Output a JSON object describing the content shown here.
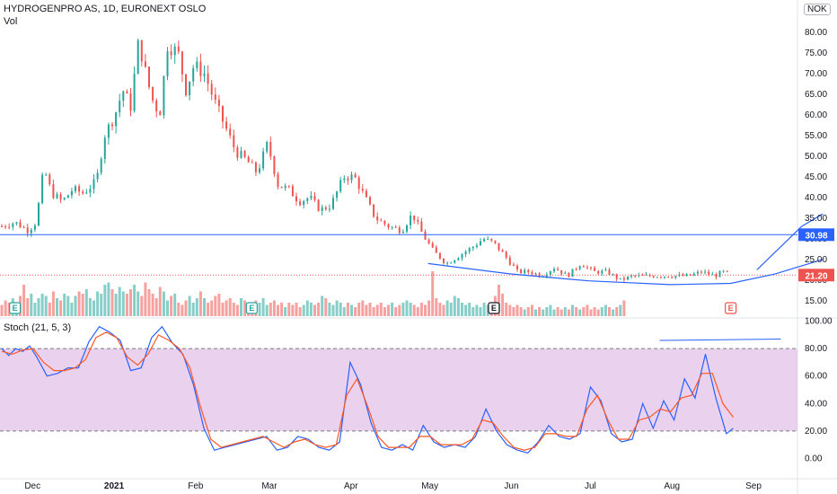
{
  "header": {
    "symbol_line": "HYDROGENPRO AS, 1D, EURONEXT OSLO",
    "vol_label": "Vol",
    "currency": "NOK",
    "stoch_label": "Stoch (21, 5, 3)"
  },
  "colors": {
    "up": "#26a69a",
    "down": "#ef5350",
    "hline": "#2962ff",
    "last_price": "#ef5350",
    "stoch_k": "#2962ff",
    "stoch_d": "#ff5722",
    "stoch_band": "#e1bee7"
  },
  "price_axis": {
    "ticks": [
      "80.00",
      "75.00",
      "70.00",
      "65.00",
      "60.00",
      "55.00",
      "50.00",
      "45.00",
      "40.00",
      "35.00",
      "30.00",
      "25.00",
      "20.00",
      "15.00"
    ],
    "tick_values": [
      80,
      75,
      70,
      65,
      60,
      55,
      50,
      45,
      40,
      35,
      30,
      25,
      20,
      15
    ],
    "range": [
      13,
      83
    ]
  },
  "stoch_axis": {
    "ticks": [
      "100.00",
      "80.00",
      "60.00",
      "40.00",
      "20.00",
      "0.00"
    ],
    "tick_values": [
      100,
      80,
      60,
      40,
      20,
      0
    ],
    "range": [
      -5,
      105
    ],
    "band": [
      20,
      80
    ]
  },
  "time_axis": {
    "labels": [
      "Dec",
      "2021",
      "Feb",
      "Mar",
      "Apr",
      "May",
      "Jun",
      "Jul",
      "Aug",
      "Sep"
    ],
    "label_dates": [
      "2020-12-01",
      "2021-01-01",
      "2021-02-01",
      "2021-03-01",
      "2021-04-01",
      "2021-05-01",
      "2021-06-01",
      "2021-07-01",
      "2021-08-01",
      "2021-09-01"
    ]
  },
  "price_tags": {
    "horizontal_level": "30.98",
    "horizontal_level_value": 30.98,
    "last_price": "21.20",
    "last_price_value": 21.2
  },
  "earnings_markers": [
    {
      "label": "E",
      "date": "2020-11-25",
      "color": "#26a69a"
    },
    {
      "label": "E",
      "date": "2021-02-23",
      "color": "#26a69a"
    },
    {
      "label": "E",
      "date": "2021-05-26",
      "color": "#131722"
    },
    {
      "label": "E",
      "date": "2021-08-24",
      "color": "#ef5350"
    }
  ],
  "chart_data": [
    {
      "type": "candlestick",
      "title": "HYDROGENPRO AS, 1D, EURONEXT OSLO",
      "y_unit": "NOK",
      "ylim": [
        13,
        83
      ],
      "x_start": "2020-11-20",
      "x_end": "2021-08-25",
      "close_path": [
        [
          "2020-11-20",
          33
        ],
        [
          "2020-11-25",
          34
        ],
        [
          "2020-11-30",
          32
        ],
        [
          "2020-12-03",
          34
        ],
        [
          "2020-12-06",
          47
        ],
        [
          "2020-12-09",
          41
        ],
        [
          "2020-12-13",
          39
        ],
        [
          "2020-12-17",
          42
        ],
        [
          "2020-12-21",
          41
        ],
        [
          "2020-12-26",
          44
        ],
        [
          "2020-12-29",
          55
        ],
        [
          "2021-01-02",
          60
        ],
        [
          "2021-01-05",
          66
        ],
        [
          "2021-01-08",
          62
        ],
        [
          "2021-01-11",
          78
        ],
        [
          "2021-01-13",
          72
        ],
        [
          "2021-01-16",
          64
        ],
        [
          "2021-01-19",
          60
        ],
        [
          "2021-01-22",
          77
        ],
        [
          "2021-01-26",
          75
        ],
        [
          "2021-01-29",
          66
        ],
        [
          "2021-02-01",
          72
        ],
        [
          "2021-02-05",
          70
        ],
        [
          "2021-02-09",
          63
        ],
        [
          "2021-02-13",
          57
        ],
        [
          "2021-02-17",
          51
        ],
        [
          "2021-02-21",
          49
        ],
        [
          "2021-02-25",
          46
        ],
        [
          "2021-03-01",
          53
        ],
        [
          "2021-03-05",
          43
        ],
        [
          "2021-03-09",
          42
        ],
        [
          "2021-03-13",
          39
        ],
        [
          "2021-03-17",
          40
        ],
        [
          "2021-03-21",
          37
        ],
        [
          "2021-03-25",
          38
        ],
        [
          "2021-03-30",
          45
        ],
        [
          "2021-04-03",
          45
        ],
        [
          "2021-04-07",
          40
        ],
        [
          "2021-04-11",
          35
        ],
        [
          "2021-04-16",
          33
        ],
        [
          "2021-04-21",
          32
        ],
        [
          "2021-04-25",
          36
        ],
        [
          "2021-04-29",
          31
        ],
        [
          "2021-05-03",
          27
        ],
        [
          "2021-05-08",
          24
        ],
        [
          "2021-05-13",
          26
        ],
        [
          "2021-05-18",
          28
        ],
        [
          "2021-05-22",
          30
        ],
        [
          "2021-05-26",
          29
        ],
        [
          "2021-05-30",
          26
        ],
        [
          "2021-06-04",
          22
        ],
        [
          "2021-06-09",
          22
        ],
        [
          "2021-06-13",
          21
        ],
        [
          "2021-06-18",
          23
        ],
        [
          "2021-06-23",
          21
        ],
        [
          "2021-06-28",
          24
        ],
        [
          "2021-07-03",
          22
        ],
        [
          "2021-07-08",
          22
        ],
        [
          "2021-07-13",
          20
        ],
        [
          "2021-07-18",
          21
        ],
        [
          "2021-07-23",
          21
        ],
        [
          "2021-07-28",
          21
        ],
        [
          "2021-08-03",
          21
        ],
        [
          "2021-08-08",
          21
        ],
        [
          "2021-08-13",
          22
        ],
        [
          "2021-08-18",
          21
        ],
        [
          "2021-08-21",
          22
        ],
        [
          "2021-08-24",
          21.2
        ]
      ],
      "horizontal_line": 30.98,
      "last_price": 21.2,
      "drawn_curve_points": [
        [
          "2021-05-01",
          24
        ],
        [
          "2021-06-01",
          21.5
        ],
        [
          "2021-07-01",
          19.8
        ],
        [
          "2021-08-01",
          18.9
        ],
        [
          "2021-08-24",
          19.2
        ],
        [
          "2021-09-10",
          21.5
        ],
        [
          "2021-09-28",
          25
        ]
      ],
      "drawn_arrow_points": [
        [
          "2021-09-03",
          22.5
        ],
        [
          "2021-09-20",
          33
        ],
        [
          "2021-09-28",
          36
        ]
      ]
    },
    {
      "type": "bar",
      "title": "Vol",
      "x_start": "2020-11-20",
      "x_end": "2021-08-25",
      "relative_volume": [
        0.25,
        0.35,
        0.3,
        0.4,
        0.3,
        0.45,
        0.7,
        0.4,
        0.5,
        0.3,
        0.4,
        0.5,
        0.45,
        0.3,
        0.55,
        0.4,
        0.35,
        0.5,
        0.45,
        0.3,
        0.45,
        0.55,
        0.5,
        0.6,
        0.4,
        0.35,
        0.55,
        0.5,
        0.7,
        0.75,
        0.6,
        0.5,
        0.65,
        0.55,
        0.5,
        0.6,
        0.7,
        0.55,
        0.45,
        0.75,
        0.6,
        0.5,
        0.4,
        0.65,
        0.55,
        0.35,
        0.45,
        0.5,
        0.3,
        0.25,
        0.35,
        0.45,
        0.3,
        0.4,
        0.55,
        0.4,
        0.3,
        0.35,
        0.45,
        0.5,
        0.3,
        0.35,
        0.4,
        0.3,
        0.25,
        0.4,
        0.35,
        0.3,
        0.2,
        0.35,
        0.3,
        0.4,
        0.25,
        0.3,
        0.35,
        0.25,
        0.3,
        0.2,
        0.3,
        0.25,
        0.3,
        0.2,
        0.25,
        0.35,
        0.3,
        0.25,
        0.3,
        0.45,
        0.4,
        0.3,
        0.25,
        0.35,
        0.3,
        0.2,
        0.3,
        0.25,
        0.2,
        0.3,
        0.35,
        0.25,
        0.3,
        0.2,
        0.25,
        0.3,
        0.2,
        0.25,
        0.3,
        0.2,
        0.25,
        0.3,
        0.35,
        0.3,
        0.25,
        0.2,
        0.3,
        0.25,
        0.35,
        1.0,
        0.4,
        0.3,
        0.25,
        0.35,
        0.3,
        0.45,
        0.4,
        0.3,
        0.25,
        0.3,
        0.2,
        0.25,
        0.2,
        0.3,
        0.25,
        0.2,
        0.45,
        0.7,
        0.5,
        0.3,
        0.25,
        0.2,
        0.25,
        0.2,
        0.15,
        0.2,
        0.25,
        0.15,
        0.2,
        0.15,
        0.2,
        0.25,
        0.15,
        0.2,
        0.15,
        0.2,
        0.15,
        0.25,
        0.2,
        0.15,
        0.2,
        0.25,
        0.15,
        0.2,
        0.15,
        0.2,
        0.25,
        0.2,
        0.15,
        0.2,
        0.25,
        0.35
      ]
    },
    {
      "type": "line",
      "title": "Stoch (21, 5, 3)",
      "ylim": [
        0,
        100
      ],
      "x_start": "2020-11-20",
      "x_end": "2021-08-25",
      "series": [
        {
          "name": "%K",
          "values": [
            [
              0,
              80
            ],
            [
              2,
              75
            ],
            [
              4,
              80
            ],
            [
              6,
              78
            ],
            [
              8,
              82
            ],
            [
              10,
              74
            ],
            [
              13,
              60
            ],
            [
              16,
              62
            ],
            [
              19,
              66
            ],
            [
              22,
              66
            ],
            [
              25,
              85
            ],
            [
              28,
              96
            ],
            [
              31,
              92
            ],
            [
              34,
              86
            ],
            [
              37,
              64
            ],
            [
              40,
              66
            ],
            [
              43,
              88
            ],
            [
              46,
              96
            ],
            [
              49,
              84
            ],
            [
              52,
              76
            ],
            [
              55,
              54
            ],
            [
              58,
              22
            ],
            [
              61,
              6
            ],
            [
              64,
              8
            ],
            [
              67,
              10
            ],
            [
              70,
              12
            ],
            [
              73,
              14
            ],
            [
              76,
              16
            ],
            [
              79,
              6
            ],
            [
              82,
              8
            ],
            [
              85,
              16
            ],
            [
              88,
              14
            ],
            [
              91,
              8
            ],
            [
              94,
              6
            ],
            [
              97,
              12
            ],
            [
              100,
              70
            ],
            [
              103,
              54
            ],
            [
              106,
              26
            ],
            [
              109,
              8
            ],
            [
              112,
              6
            ],
            [
              115,
              10
            ],
            [
              118,
              6
            ],
            [
              121,
              24
            ],
            [
              124,
              12
            ],
            [
              127,
              8
            ],
            [
              130,
              10
            ],
            [
              133,
              8
            ],
            [
              136,
              16
            ],
            [
              139,
              36
            ],
            [
              142,
              20
            ],
            [
              145,
              10
            ],
            [
              148,
              6
            ],
            [
              151,
              4
            ],
            [
              154,
              12
            ],
            [
              157,
              24
            ],
            [
              160,
              16
            ],
            [
              163,
              14
            ],
            [
              166,
              18
            ],
            [
              169,
              52
            ],
            [
              172,
              42
            ],
            [
              175,
              18
            ],
            [
              178,
              12
            ],
            [
              181,
              14
            ],
            [
              184,
              40
            ],
            [
              187,
              22
            ],
            [
              190,
              42
            ],
            [
              193,
              28
            ],
            [
              196,
              58
            ],
            [
              199,
              44
            ],
            [
              202,
              76
            ],
            [
              205,
              44
            ],
            [
              208,
              18
            ],
            [
              210,
              22
            ]
          ]
        },
        {
          "name": "%D",
          "values": [
            [
              0,
              78
            ],
            [
              3,
              76
            ],
            [
              6,
              79
            ],
            [
              9,
              80
            ],
            [
              12,
              70
            ],
            [
              15,
              64
            ],
            [
              18,
              64
            ],
            [
              21,
              66
            ],
            [
              24,
              72
            ],
            [
              27,
              88
            ],
            [
              30,
              92
            ],
            [
              33,
              88
            ],
            [
              36,
              74
            ],
            [
              39,
              68
            ],
            [
              42,
              76
            ],
            [
              45,
              90
            ],
            [
              48,
              86
            ],
            [
              51,
              80
            ],
            [
              54,
              66
            ],
            [
              57,
              38
            ],
            [
              60,
              14
            ],
            [
              63,
              8
            ],
            [
              66,
              10
            ],
            [
              69,
              12
            ],
            [
              72,
              14
            ],
            [
              75,
              16
            ],
            [
              78,
              12
            ],
            [
              81,
              8
            ],
            [
              84,
              12
            ],
            [
              87,
              14
            ],
            [
              90,
              10
            ],
            [
              93,
              8
            ],
            [
              96,
              10
            ],
            [
              99,
              46
            ],
            [
              102,
              58
            ],
            [
              105,
              38
            ],
            [
              108,
              16
            ],
            [
              111,
              8
            ],
            [
              114,
              8
            ],
            [
              117,
              8
            ],
            [
              120,
              16
            ],
            [
              123,
              16
            ],
            [
              126,
              10
            ],
            [
              129,
              10
            ],
            [
              132,
              10
            ],
            [
              135,
              14
            ],
            [
              138,
              28
            ],
            [
              141,
              26
            ],
            [
              144,
              16
            ],
            [
              147,
              8
            ],
            [
              150,
              6
            ],
            [
              153,
              8
            ],
            [
              156,
              18
            ],
            [
              159,
              18
            ],
            [
              162,
              16
            ],
            [
              165,
              16
            ],
            [
              168,
              36
            ],
            [
              171,
              46
            ],
            [
              174,
              28
            ],
            [
              177,
              14
            ],
            [
              180,
              14
            ],
            [
              183,
              28
            ],
            [
              186,
              30
            ],
            [
              189,
              36
            ],
            [
              192,
              34
            ],
            [
              195,
              44
            ],
            [
              198,
              46
            ],
            [
              201,
              62
            ],
            [
              204,
              62
            ],
            [
              207,
              40
            ],
            [
              210,
              30
            ]
          ]
        }
      ],
      "drawn_line": [
        [
          "2021-07-28",
          86
        ],
        [
          "2021-09-12",
          87
        ]
      ]
    }
  ]
}
